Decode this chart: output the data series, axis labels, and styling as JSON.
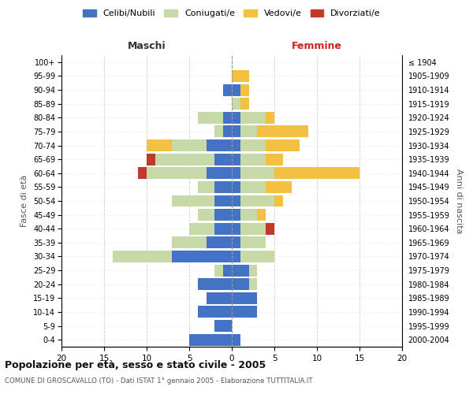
{
  "age_groups": [
    "0-4",
    "5-9",
    "10-14",
    "15-19",
    "20-24",
    "25-29",
    "30-34",
    "35-39",
    "40-44",
    "45-49",
    "50-54",
    "55-59",
    "60-64",
    "65-69",
    "70-74",
    "75-79",
    "80-84",
    "85-89",
    "90-94",
    "95-99",
    "100+"
  ],
  "birth_years": [
    "2000-2004",
    "1995-1999",
    "1990-1994",
    "1985-1989",
    "1980-1984",
    "1975-1979",
    "1970-1974",
    "1965-1969",
    "1960-1964",
    "1955-1959",
    "1950-1954",
    "1945-1949",
    "1940-1944",
    "1935-1939",
    "1930-1934",
    "1925-1929",
    "1920-1924",
    "1915-1919",
    "1910-1914",
    "1905-1909",
    "≤ 1904"
  ],
  "colors": {
    "celibe": "#4472c4",
    "coniugato": "#c8d9a8",
    "vedovo": "#f4c042",
    "divorziato": "#c0392b"
  },
  "maschi": {
    "celibe": [
      5,
      2,
      4,
      3,
      4,
      1,
      7,
      3,
      2,
      2,
      2,
      2,
      3,
      2,
      3,
      1,
      1,
      0,
      1,
      0,
      0
    ],
    "coniugato": [
      0,
      0,
      0,
      0,
      0,
      1,
      7,
      4,
      3,
      2,
      5,
      2,
      7,
      7,
      4,
      1,
      3,
      0,
      0,
      0,
      0
    ],
    "vedovo": [
      0,
      0,
      0,
      0,
      0,
      0,
      0,
      0,
      0,
      0,
      0,
      0,
      0,
      0,
      3,
      0,
      0,
      0,
      0,
      0,
      0
    ],
    "divorziato": [
      0,
      0,
      0,
      0,
      0,
      0,
      0,
      0,
      0,
      0,
      0,
      0,
      1,
      1,
      0,
      0,
      0,
      0,
      0,
      0,
      0
    ]
  },
  "femmine": {
    "nubile": [
      1,
      0,
      3,
      3,
      2,
      2,
      1,
      1,
      1,
      1,
      1,
      1,
      1,
      1,
      1,
      1,
      1,
      0,
      1,
      0,
      0
    ],
    "coniugata": [
      0,
      0,
      0,
      0,
      1,
      1,
      4,
      3,
      3,
      2,
      4,
      3,
      4,
      3,
      3,
      2,
      3,
      1,
      0,
      0,
      0
    ],
    "vedova": [
      0,
      0,
      0,
      0,
      0,
      0,
      0,
      0,
      0,
      1,
      1,
      3,
      10,
      2,
      4,
      6,
      1,
      1,
      1,
      2,
      0
    ],
    "divorziata": [
      0,
      0,
      0,
      0,
      0,
      0,
      0,
      0,
      1,
      0,
      0,
      0,
      0,
      0,
      0,
      0,
      0,
      0,
      0,
      0,
      0
    ]
  },
  "xlim": 20,
  "title": "Popolazione per età, sesso e stato civile - 2005",
  "subtitle": "COMUNE DI GROSCAVALLO (TO) - Dati ISTAT 1° gennaio 2005 - Elaborazione TUTTITALIA.IT",
  "ylabel_left": "Fasce di età",
  "ylabel_right": "Anni di nascita",
  "xlabel_maschi": "Maschi",
  "xlabel_femmine": "Femmine",
  "legend_labels": [
    "Celibi/Nubili",
    "Coniugati/e",
    "Vedovi/e",
    "Divorziati/e"
  ],
  "background_color": "#ffffff",
  "grid_color": "#cccccc"
}
